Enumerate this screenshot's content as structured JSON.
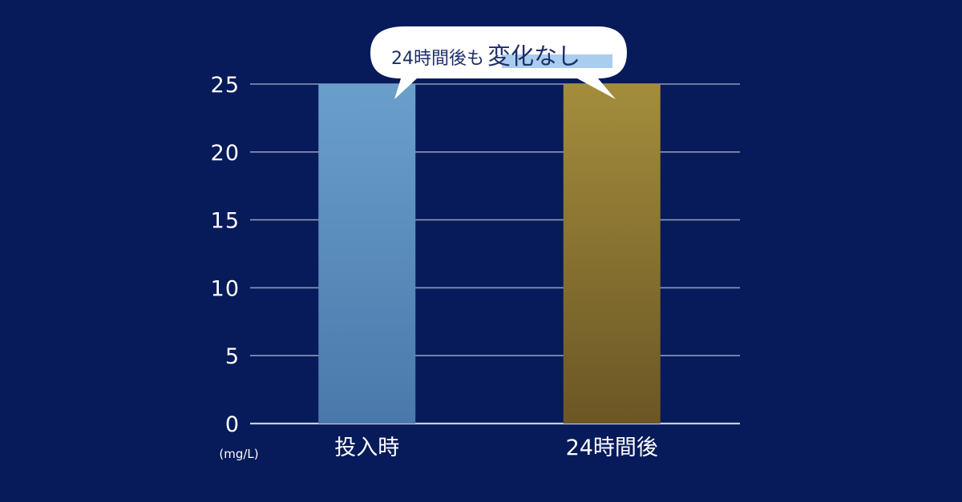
{
  "chart_data": {
    "type": "bar",
    "categories": [
      "投入時",
      "24時間後"
    ],
    "values": [
      25,
      25
    ],
    "ylim": [
      0,
      25
    ],
    "yticks": [
      0,
      5,
      10,
      15,
      20,
      25
    ],
    "unit": "(mg/L)",
    "grid": true,
    "bar_colors": [
      {
        "top": "#6a9fcb",
        "bottom": "#4a78ab"
      },
      {
        "top": "#a38d3c",
        "bottom": "#6b5625"
      }
    ],
    "gridline_color": "#8e9ab8",
    "background": "#071a5a",
    "annotation": {
      "text_normal": "24時間後も",
      "text_highlight": "変化なし",
      "highlight_color": "#a9cdee"
    }
  }
}
